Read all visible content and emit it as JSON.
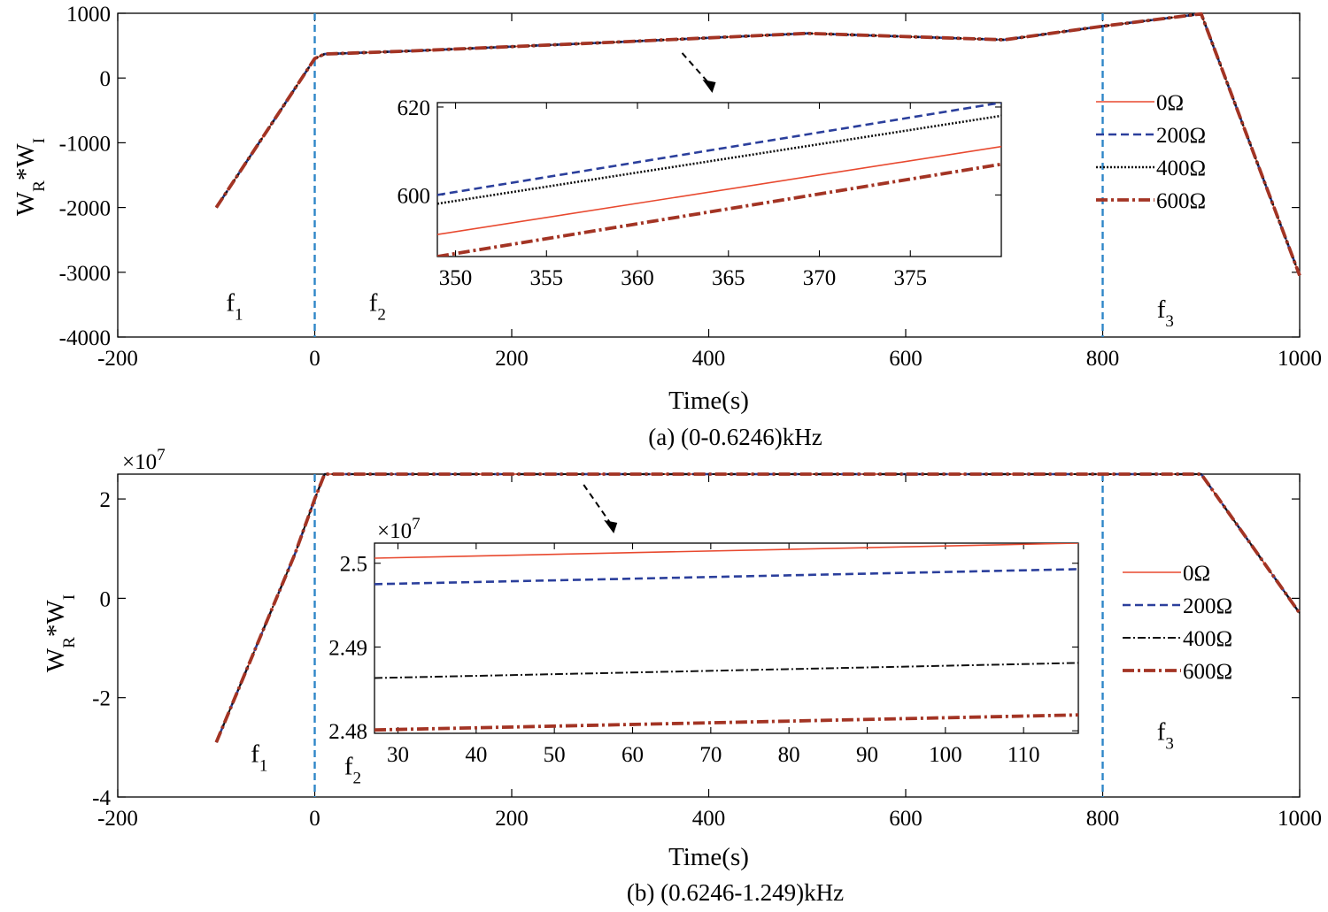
{
  "chart_data": [
    {
      "type": "line",
      "caption": "(a) (0-0.6246)kHz",
      "xlabel": "Time(s)",
      "ylabel": "W",
      "ylabel_sub1": "R",
      "ylabel_mid": "*W",
      "ylabel_sub2": "I",
      "exponent_label": "",
      "xlim": [
        -200,
        1000
      ],
      "ylim": [
        -4000,
        1000
      ],
      "xticks": [
        -200,
        0,
        200,
        400,
        600,
        800,
        1000
      ],
      "yticks": [
        -4000,
        -3000,
        -2000,
        -1000,
        0,
        1000
      ],
      "xtick_labels": [
        "-200",
        "0",
        "200",
        "400",
        "600",
        "800",
        "1000"
      ],
      "ytick_labels": [
        "-4000",
        "-3000",
        "-2000",
        "-1000",
        "0",
        "1000"
      ],
      "region_lines_x": [
        0,
        800
      ],
      "regions": [
        {
          "base": "f",
          "sub": "1",
          "x": -90,
          "y": -3600
        },
        {
          "base": "f",
          "sub": "2",
          "x": 55,
          "y": -3600
        },
        {
          "base": "f",
          "sub": "3",
          "x": 855,
          "y": -3700
        }
      ],
      "x": [
        -100,
        0,
        10,
        100,
        300,
        500,
        700,
        800,
        900,
        1000
      ],
      "series": [
        {
          "name": "0Ω",
          "color": "#e8492f",
          "dash": "",
          "width": 1.6,
          "values": [
            -2000,
            300,
            370,
            420,
            550,
            690,
            590,
            800,
            990,
            -3050
          ]
        },
        {
          "name": "200Ω",
          "color": "#2b3f9c",
          "dash": "9,5",
          "width": 2.6,
          "values": [
            -2000,
            300,
            370,
            420,
            550,
            690,
            590,
            800,
            990,
            -3050
          ]
        },
        {
          "name": "400Ω",
          "color": "#111111",
          "dash": "2,2",
          "width": 2.6,
          "values": [
            -2000,
            300,
            370,
            420,
            550,
            690,
            590,
            800,
            990,
            -3050
          ]
        },
        {
          "name": "600Ω",
          "color": "#a33424",
          "dash": "13,4,3,4",
          "width": 3.8,
          "values": [
            -2000,
            300,
            370,
            420,
            550,
            690,
            590,
            800,
            990,
            -3050
          ]
        }
      ],
      "legend_position": "right",
      "inset": {
        "xlim": [
          349,
          380
        ],
        "ylim": [
          586,
          621
        ],
        "xticks": [
          350,
          355,
          360,
          365,
          370,
          375
        ],
        "yticks": [
          600,
          620
        ],
        "xtick_labels": [
          "350",
          "355",
          "360",
          "365",
          "370",
          "375"
        ],
        "ytick_labels": [
          "600",
          "620"
        ],
        "exponent_label": "",
        "pointer_x": 400,
        "series": [
          {
            "name": "0Ω",
            "x": [
              349,
              380
            ],
            "values": [
              591,
              611
            ]
          },
          {
            "name": "200Ω",
            "x": [
              349,
              380
            ],
            "values": [
              600,
              621
            ]
          },
          {
            "name": "400Ω",
            "x": [
              349,
              380
            ],
            "values": [
              598,
              618
            ]
          },
          {
            "name": "600Ω",
            "x": [
              349,
              380
            ],
            "values": [
              586,
              607
            ]
          }
        ]
      }
    },
    {
      "type": "line",
      "caption": "(b) (0.6246-1.249)kHz",
      "xlabel": "Time(s)",
      "ylabel": "W",
      "ylabel_sub1": "R",
      "ylabel_mid": "*W",
      "ylabel_sub2": "I",
      "exponent_label": "×10",
      "exponent_power": "7",
      "xlim": [
        -200,
        1000
      ],
      "ylim": [
        -4,
        2.5
      ],
      "xticks": [
        -200,
        0,
        200,
        400,
        600,
        800,
        1000
      ],
      "yticks": [
        -4,
        -2,
        0,
        2
      ],
      "xtick_labels": [
        "-200",
        "0",
        "200",
        "400",
        "600",
        "800",
        "1000"
      ],
      "ytick_labels": [
        "-4",
        "-2",
        "0",
        "2"
      ],
      "region_lines_x": [
        0,
        800
      ],
      "regions": [
        {
          "base": "f",
          "sub": "1",
          "x": -65,
          "y": -3.3
        },
        {
          "base": "f",
          "sub": "2",
          "x": 30,
          "y": -3.55
        },
        {
          "base": "f",
          "sub": "3",
          "x": 855,
          "y": -2.85
        }
      ],
      "x": [
        -100,
        -20,
        0,
        10,
        100,
        300,
        500,
        700,
        800,
        900,
        1000
      ],
      "series": [
        {
          "name": "0Ω",
          "color": "#e8492f",
          "dash": "",
          "width": 1.6,
          "values": [
            -2.9,
            0.9,
            2.0,
            2.5,
            2.5,
            2.5,
            2.5,
            2.5,
            2.5,
            2.5,
            -0.3
          ]
        },
        {
          "name": "200Ω",
          "color": "#2b3f9c",
          "dash": "9,5",
          "width": 2.6,
          "values": [
            -2.9,
            0.9,
            2.0,
            2.5,
            2.5,
            2.5,
            2.5,
            2.5,
            2.5,
            2.5,
            -0.3
          ]
        },
        {
          "name": "400Ω",
          "color": "#111111",
          "dash": "9,3,2,3",
          "width": 2.0,
          "values": [
            -2.9,
            0.9,
            2.0,
            2.5,
            2.5,
            2.5,
            2.5,
            2.5,
            2.5,
            2.5,
            -0.3
          ]
        },
        {
          "name": "600Ω",
          "color": "#a33424",
          "dash": "13,4,3,4",
          "width": 3.8,
          "values": [
            -2.9,
            0.9,
            2.0,
            2.5,
            2.5,
            2.5,
            2.5,
            2.5,
            2.5,
            2.5,
            -0.3
          ]
        }
      ],
      "legend_position": "right",
      "inset": {
        "xlim": [
          27,
          117
        ],
        "ylim": [
          2.4797,
          2.5024
        ],
        "xticks": [
          30,
          40,
          50,
          60,
          70,
          80,
          90,
          100,
          110
        ],
        "yticks": [
          2.48,
          2.49,
          2.5
        ],
        "xtick_labels": [
          "30",
          "40",
          "50",
          "60",
          "70",
          "80",
          "90",
          "100",
          "110"
        ],
        "ytick_labels": [
          "2.48",
          "2.49",
          "2.5"
        ],
        "exponent_label": "×10",
        "exponent_power": "7",
        "pointer_x": 300,
        "series": [
          {
            "name": "0Ω",
            "x": [
              27,
              117
            ],
            "values": [
              2.5006,
              2.5024
            ]
          },
          {
            "name": "200Ω",
            "x": [
              27,
              117
            ],
            "values": [
              2.4975,
              2.4993
            ]
          },
          {
            "name": "400Ω",
            "x": [
              27,
              117
            ],
            "values": [
              2.4863,
              2.4881
            ]
          },
          {
            "name": "600Ω",
            "x": [
              27,
              117
            ],
            "values": [
              2.4801,
              2.4819
            ]
          }
        ]
      }
    }
  ]
}
